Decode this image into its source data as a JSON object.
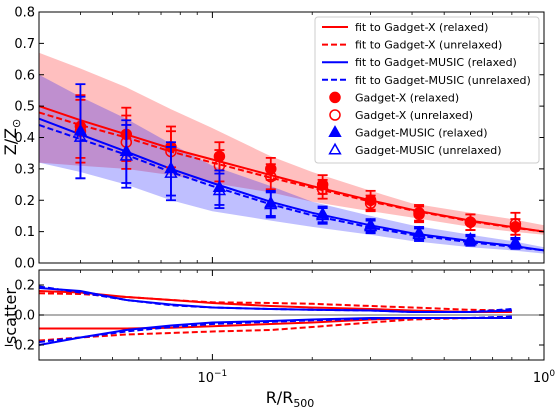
{
  "chart_data": [
    {
      "type": "line",
      "panel": "top",
      "xlabel": "R/R",
      "xlabel_sub": "500",
      "ylabel": "Z/Z",
      "ylabel_sub": "⊙",
      "xscale": "log",
      "xlim": [
        0.03,
        1.0
      ],
      "ylim": [
        0.0,
        0.8
      ],
      "y_ticks": [
        0.0,
        0.1,
        0.2,
        0.3,
        0.4,
        0.5,
        0.6,
        0.7,
        0.8
      ],
      "y_tick_labels": [
        "0.0",
        "0.1",
        "0.2",
        "0.3",
        "0.4",
        "0.5",
        "0.6",
        "0.7",
        "0.8"
      ],
      "legend_position": "top-right",
      "colors": {
        "gadget_x": "#ff0000",
        "gadget_music": "#0000ff",
        "gadget_x_band": "#f5a3a3",
        "gadget_music_band": "#a3a3f5"
      },
      "series": [
        {
          "name": "fit to Gadget-X (relaxed)",
          "kind": "line",
          "style": "solid",
          "color": "#ff0000",
          "x": [
            0.03,
            0.04,
            0.055,
            0.075,
            0.1,
            0.15,
            0.2,
            0.3,
            0.4,
            0.6,
            0.8,
            1.0
          ],
          "y": [
            0.5,
            0.455,
            0.41,
            0.365,
            0.33,
            0.28,
            0.245,
            0.2,
            0.17,
            0.135,
            0.115,
            0.1
          ]
        },
        {
          "name": "fit to Gadget-X (unrelaxed)",
          "kind": "line",
          "style": "dashed",
          "color": "#ff0000",
          "x": [
            0.03,
            0.04,
            0.055,
            0.075,
            0.1,
            0.15,
            0.2,
            0.3,
            0.4,
            0.6,
            0.8,
            1.0
          ],
          "y": [
            0.48,
            0.44,
            0.4,
            0.355,
            0.32,
            0.272,
            0.24,
            0.196,
            0.168,
            0.133,
            0.113,
            0.1
          ]
        },
        {
          "name": "fit to Gadget-MUSIC (relaxed)",
          "kind": "line",
          "style": "solid",
          "color": "#0000ff",
          "x": [
            0.03,
            0.04,
            0.055,
            0.075,
            0.1,
            0.15,
            0.2,
            0.3,
            0.4,
            0.6,
            0.8,
            1.0
          ],
          "y": [
            0.46,
            0.41,
            0.355,
            0.3,
            0.255,
            0.195,
            0.16,
            0.12,
            0.095,
            0.07,
            0.055,
            0.04
          ]
        },
        {
          "name": "fit to Gadget-MUSIC (unrelaxed)",
          "kind": "line",
          "style": "dashed",
          "color": "#0000ff",
          "x": [
            0.03,
            0.04,
            0.055,
            0.075,
            0.1,
            0.15,
            0.2,
            0.3,
            0.4,
            0.6,
            0.8,
            1.0
          ],
          "y": [
            0.44,
            0.395,
            0.345,
            0.29,
            0.245,
            0.187,
            0.152,
            0.113,
            0.09,
            0.066,
            0.052,
            0.04
          ]
        },
        {
          "name": "Gadget-X (relaxed)",
          "kind": "points",
          "marker": "circle-filled",
          "color": "#ff0000",
          "x": [
            0.04,
            0.055,
            0.075,
            0.105,
            0.15,
            0.215,
            0.3,
            0.42,
            0.6,
            0.82
          ],
          "y": [
            0.435,
            0.41,
            0.37,
            0.34,
            0.3,
            0.25,
            0.2,
            0.16,
            0.13,
            0.115
          ],
          "yerr": [
            0.1,
            0.085,
            0.065,
            0.045,
            0.035,
            0.03,
            0.03,
            0.025,
            0.025,
            0.025
          ]
        },
        {
          "name": "Gadget-X (unrelaxed)",
          "kind": "points",
          "marker": "circle-open",
          "color": "#ff0000",
          "x": [
            0.04,
            0.055,
            0.075,
            0.105,
            0.15,
            0.215,
            0.3,
            0.42,
            0.6,
            0.82
          ],
          "y": [
            0.42,
            0.385,
            0.355,
            0.31,
            0.275,
            0.235,
            0.19,
            0.155,
            0.13,
            0.125
          ],
          "yerr": [
            0.1,
            0.085,
            0.065,
            0.05,
            0.04,
            0.03,
            0.025,
            0.025,
            0.025,
            0.035
          ]
        },
        {
          "name": "Gadget-MUSIC (relaxed)",
          "kind": "points",
          "marker": "triangle-filled",
          "color": "#0000ff",
          "x": [
            0.04,
            0.055,
            0.075,
            0.105,
            0.15,
            0.215,
            0.3,
            0.42,
            0.6,
            0.82
          ],
          "y": [
            0.42,
            0.355,
            0.3,
            0.24,
            0.19,
            0.155,
            0.12,
            0.095,
            0.075,
            0.065
          ],
          "yerr": [
            0.15,
            0.1,
            0.085,
            0.055,
            0.04,
            0.025,
            0.02,
            0.02,
            0.015,
            0.015
          ]
        },
        {
          "name": "Gadget-MUSIC (unrelaxed)",
          "kind": "points",
          "marker": "triangle-open",
          "color": "#0000ff",
          "x": [
            0.04,
            0.055,
            0.075,
            0.105,
            0.15,
            0.215,
            0.3,
            0.42,
            0.6,
            0.82
          ],
          "y": [
            0.4,
            0.34,
            0.285,
            0.23,
            0.185,
            0.15,
            0.115,
            0.09,
            0.07,
            0.06
          ],
          "yerr": [
            0.13,
            0.1,
            0.085,
            0.055,
            0.04,
            0.025,
            0.02,
            0.02,
            0.015,
            0.015
          ]
        }
      ],
      "bands": [
        {
          "color": "#ff0000",
          "x": [
            0.03,
            0.04,
            0.055,
            0.075,
            0.1,
            0.15,
            0.2,
            0.3,
            0.4,
            0.6,
            0.8,
            1.0
          ],
          "lower": [
            0.32,
            0.31,
            0.3,
            0.28,
            0.255,
            0.225,
            0.195,
            0.165,
            0.145,
            0.115,
            0.1,
            0.09
          ],
          "upper": [
            0.67,
            0.62,
            0.56,
            0.49,
            0.43,
            0.34,
            0.29,
            0.23,
            0.19,
            0.16,
            0.14,
            0.12
          ]
        },
        {
          "color": "#0000ff",
          "x": [
            0.03,
            0.04,
            0.055,
            0.075,
            0.1,
            0.15,
            0.2,
            0.3,
            0.4,
            0.6,
            0.8,
            1.0
          ],
          "lower": [
            0.32,
            0.29,
            0.25,
            0.2,
            0.165,
            0.135,
            0.115,
            0.09,
            0.07,
            0.05,
            0.04,
            0.03
          ],
          "upper": [
            0.6,
            0.53,
            0.46,
            0.38,
            0.31,
            0.245,
            0.195,
            0.15,
            0.12,
            0.09,
            0.07,
            0.05
          ]
        }
      ]
    },
    {
      "type": "line",
      "panel": "bottom",
      "xlabel": "R/R",
      "xlabel_sub": "500",
      "ylabel": "scatter",
      "xscale": "log",
      "xlim": [
        0.03,
        1.0
      ],
      "ylim": [
        -0.3,
        0.3
      ],
      "y_ticks": [
        -0.2,
        0.0,
        0.2
      ],
      "y_tick_labels": [
        "−0.2",
        "0.0",
        "0.2"
      ],
      "x_ticks": [
        0.1,
        1.0
      ],
      "x_tick_labels": [
        "10",
        "10"
      ],
      "x_tick_exponents": [
        "−1",
        "0"
      ],
      "zero_line_color": "#808080",
      "series": [
        {
          "color": "#ff0000",
          "style": "solid",
          "x": [
            0.03,
            0.04,
            0.055,
            0.075,
            0.1,
            0.15,
            0.2,
            0.3,
            0.4,
            0.6,
            0.8
          ],
          "y": [
            0.16,
            0.15,
            0.12,
            0.1,
            0.08,
            0.06,
            0.05,
            0.04,
            0.03,
            0.02,
            0.02
          ]
        },
        {
          "color": "#ff0000",
          "style": "solid",
          "x": [
            0.03,
            0.04,
            0.055,
            0.075,
            0.1,
            0.15,
            0.2,
            0.3,
            0.4,
            0.6,
            0.8
          ],
          "y": [
            -0.09,
            -0.09,
            -0.09,
            -0.085,
            -0.075,
            -0.06,
            -0.05,
            -0.03,
            -0.02,
            -0.02,
            -0.02
          ]
        },
        {
          "color": "#ff0000",
          "style": "dashed",
          "x": [
            0.03,
            0.04,
            0.055,
            0.075,
            0.1,
            0.15,
            0.2,
            0.3,
            0.4,
            0.6,
            0.8
          ],
          "y": [
            0.145,
            0.14,
            0.12,
            0.1,
            0.085,
            0.08,
            0.075,
            0.06,
            0.05,
            0.035,
            0.03
          ]
        },
        {
          "color": "#ff0000",
          "style": "dashed",
          "x": [
            0.03,
            0.04,
            0.055,
            0.075,
            0.1,
            0.15,
            0.2,
            0.3,
            0.4,
            0.6,
            0.8
          ],
          "y": [
            -0.17,
            -0.15,
            -0.13,
            -0.12,
            -0.11,
            -0.1,
            -0.08,
            -0.05,
            -0.03,
            -0.02,
            -0.02
          ]
        },
        {
          "color": "#0000ff",
          "style": "solid",
          "x": [
            0.03,
            0.04,
            0.055,
            0.075,
            0.1,
            0.15,
            0.2,
            0.3,
            0.4,
            0.6,
            0.8
          ],
          "y": [
            0.18,
            0.16,
            0.1,
            0.07,
            0.05,
            0.04,
            0.035,
            0.03,
            0.02,
            0.02,
            0.03
          ]
        },
        {
          "color": "#0000ff",
          "style": "solid",
          "x": [
            0.03,
            0.04,
            0.055,
            0.075,
            0.1,
            0.15,
            0.2,
            0.3,
            0.4,
            0.6,
            0.8
          ],
          "y": [
            -0.2,
            -0.15,
            -0.1,
            -0.07,
            -0.05,
            -0.04,
            -0.03,
            -0.02,
            -0.02,
            -0.02,
            -0.02
          ]
        },
        {
          "color": "#0000ff",
          "style": "dashed",
          "x": [
            0.03,
            0.04,
            0.055,
            0.075,
            0.1,
            0.15,
            0.2,
            0.3,
            0.4,
            0.6,
            0.8
          ],
          "y": [
            0.19,
            0.15,
            0.1,
            0.065,
            0.05,
            0.04,
            0.035,
            0.03,
            0.02,
            0.02,
            0.04
          ]
        },
        {
          "color": "#0000ff",
          "style": "dashed",
          "x": [
            0.03,
            0.04,
            0.055,
            0.075,
            0.1,
            0.15,
            0.2,
            0.3,
            0.4,
            0.6,
            0.8
          ],
          "y": [
            -0.18,
            -0.15,
            -0.11,
            -0.08,
            -0.06,
            -0.045,
            -0.035,
            -0.025,
            -0.02,
            -0.02,
            -0.01
          ]
        }
      ]
    }
  ]
}
